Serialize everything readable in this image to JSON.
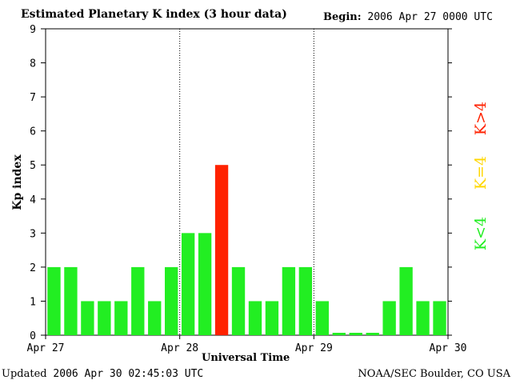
{
  "header": {
    "title": "Estimated Planetary K index (3 hour data)",
    "begin_label": "Begin:",
    "begin_value": "2006 Apr 27 0000 UTC"
  },
  "footer": {
    "updated_label": "Updated",
    "updated_value": "2006 Apr 30 02:45:03 UTC",
    "source": "NOAA/SEC Boulder, CO USA"
  },
  "legend": {
    "below4": {
      "label": "K<4",
      "color": "#22ee22"
    },
    "equal4": {
      "label": "K=4",
      "color": "#ffd700"
    },
    "above4": {
      "label": "K>4",
      "color": "#ff2200"
    }
  },
  "chart_data": {
    "type": "bar",
    "xlabel": "Universal Time",
    "ylabel": "Kp index",
    "ylim": [
      0,
      9
    ],
    "yticks": [
      0,
      1,
      2,
      3,
      4,
      5,
      6,
      7,
      8,
      9
    ],
    "x_tick_labels": [
      "Apr 27",
      "Apr 28",
      "Apr 29",
      "Apr 30"
    ],
    "day_separators": true,
    "grid": false,
    "values": [
      2,
      2,
      1,
      1,
      1,
      2,
      1,
      2,
      3,
      3,
      5,
      2,
      1,
      1,
      2,
      2,
      1,
      0,
      0,
      0,
      1,
      2,
      1,
      1
    ]
  }
}
